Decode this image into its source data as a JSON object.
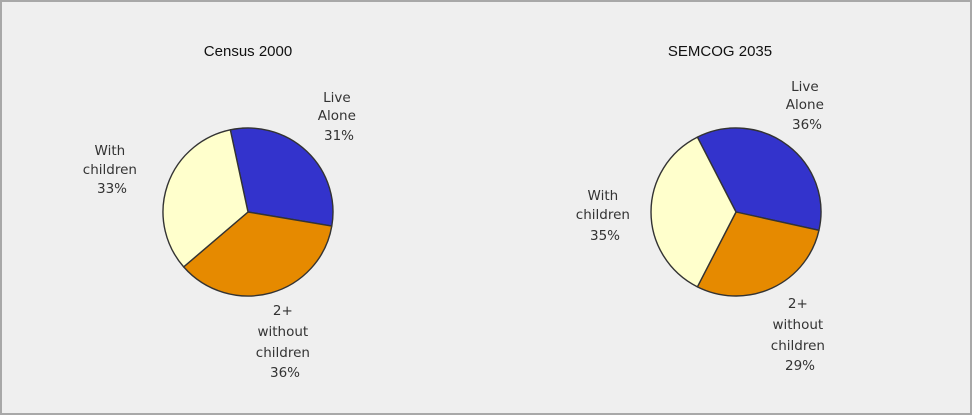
{
  "chart_data": [
    {
      "type": "pie",
      "title": "Census 2000",
      "slices": [
        {
          "label": "Live Alone",
          "value": 31,
          "display": "31%",
          "color": "#3333cc"
        },
        {
          "label": "2+ without children",
          "value": 36,
          "display": "36%",
          "color": "#e68a00"
        },
        {
          "label": "With children",
          "value": 33,
          "display": "33%",
          "color": "#ffffcc"
        }
      ]
    },
    {
      "type": "pie",
      "title": "SEMCOG 2035",
      "slices": [
        {
          "label": "Live Alone",
          "value": 36,
          "display": "36%",
          "color": "#3333cc"
        },
        {
          "label": "2+ without children",
          "value": 29,
          "display": "29%",
          "color": "#e68a00"
        },
        {
          "label": "With children",
          "value": 35,
          "display": "35%",
          "color": "#ffffcc"
        }
      ]
    }
  ]
}
